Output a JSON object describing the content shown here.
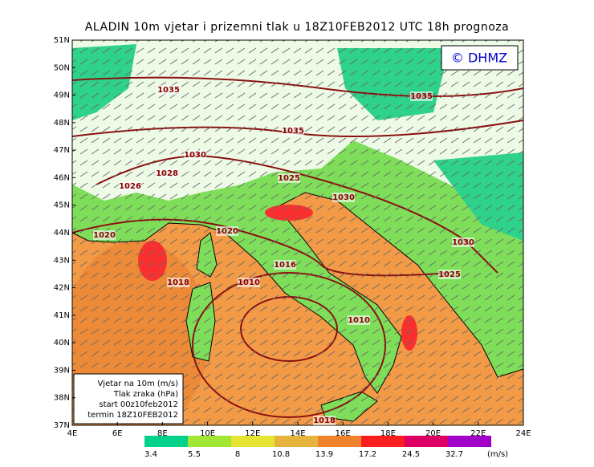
{
  "title": "ALADIN 10m vjetar i prizemni tlak u 18Z10FEB2012 UTC 18h prognoza",
  "logo": "© DHMZ",
  "lat_labels": [
    "51N",
    "50N",
    "49N",
    "48N",
    "47N",
    "46N",
    "45N",
    "44N",
    "43N",
    "42N",
    "41N",
    "40N",
    "39N",
    "38N",
    "37N"
  ],
  "lon_labels": [
    "4E",
    "6E",
    "8E",
    "10E",
    "12E",
    "14E",
    "16E",
    "18E",
    "20E",
    "22E",
    "24E"
  ],
  "isobars": [
    {
      "label": "1035"
    },
    {
      "label": "1035"
    },
    {
      "label": "1035"
    },
    {
      "label": "1030"
    },
    {
      "label": "1028"
    },
    {
      "label": "1026"
    },
    {
      "label": "1025"
    },
    {
      "label": "1030"
    },
    {
      "label": "1020"
    },
    {
      "label": "1020"
    },
    {
      "label": "1030"
    },
    {
      "label": "1016"
    },
    {
      "label": "1018"
    },
    {
      "label": "1010"
    },
    {
      "label": "1025"
    },
    {
      "label": "1010"
    },
    {
      "label": "1018"
    }
  ],
  "info_box": {
    "lines": [
      "Vjetar na 10m (m/s)",
      "Tlak zraka (hPa)",
      "start 00z10feb2012",
      "termin 18Z10FEB2012"
    ]
  },
  "colorbar": {
    "labels": [
      "3.4",
      "5.5",
      "8",
      "10.8",
      "13.9",
      "17.2",
      "24.5",
      "32.7"
    ],
    "colors": [
      "#00d28c",
      "#a0e632",
      "#e6e632",
      "#e6b43c",
      "#f0822d",
      "#fa1e1e",
      "#dc0064",
      "#a000c8"
    ],
    "unit": "(m/s)"
  }
}
